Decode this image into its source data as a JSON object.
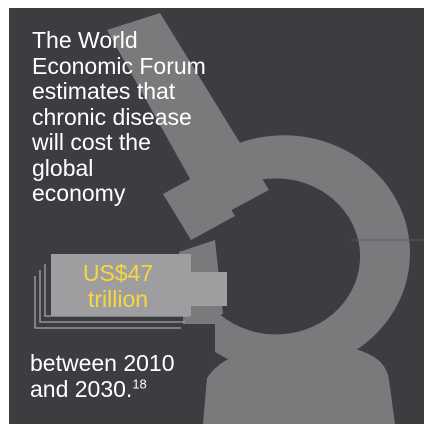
{
  "infographic": {
    "intro": "The World\nEconomic Forum\nestimates that\nchronic disease\nwill cost the\nglobal\neconomy",
    "amount_line1": "US$47",
    "amount_line2": "trillion",
    "closing_text": "between 2010\nand 2030.",
    "footnote": "18",
    "colors": {
      "background": "#3c3d40",
      "graphic": "#7a7a7c",
      "accent": "#f7d83a",
      "text": "#ffffff"
    }
  }
}
